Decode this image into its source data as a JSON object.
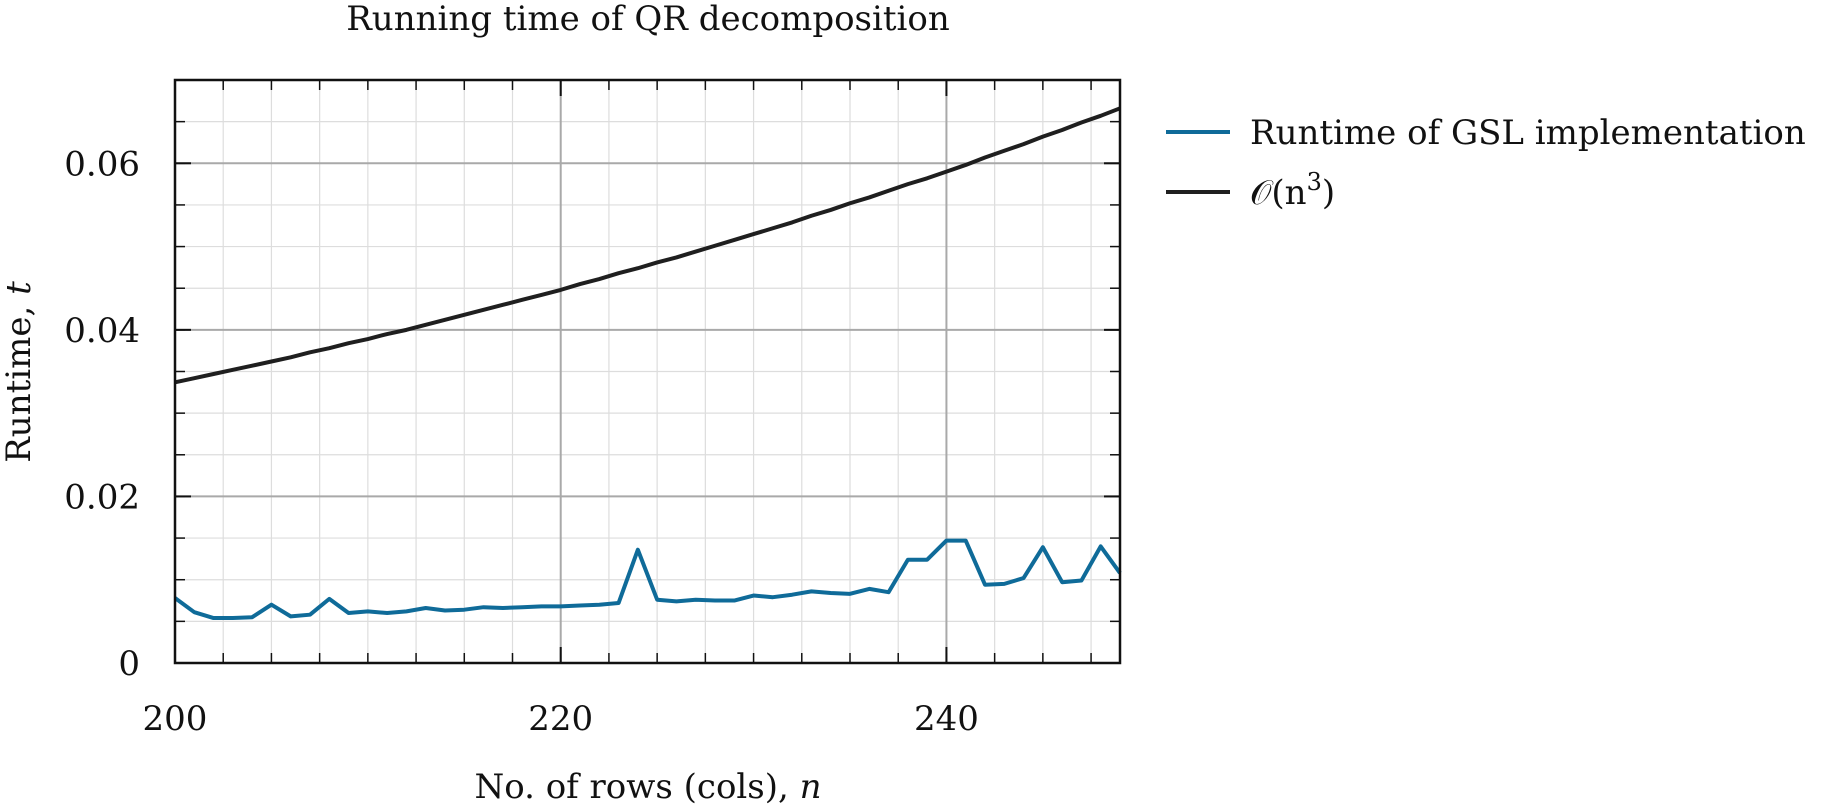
{
  "chart_data": {
    "type": "line",
    "title": "Running time of QR decomposition",
    "xlabel_text": "No. of rows (cols), ",
    "xlabel_var": "n",
    "ylabel_text": "Runtime, ",
    "ylabel_var": "t",
    "xlim": [
      200,
      249
    ],
    "ylim": [
      0,
      0.07
    ],
    "x_major_ticks": [
      200,
      220,
      240
    ],
    "y_major_ticks": [
      0,
      0.02,
      0.04,
      0.06
    ],
    "x_tick_labels": [
      "200",
      "220",
      "240"
    ],
    "y_tick_labels": [
      "0",
      "0.02",
      "0.04",
      "0.06"
    ],
    "x_minor_step": 2.5,
    "y_minor_step": 0.005,
    "grid": true,
    "legend_position": "outside-right-top",
    "x": [
      200,
      201,
      202,
      203,
      204,
      205,
      206,
      207,
      208,
      209,
      210,
      211,
      212,
      213,
      214,
      215,
      216,
      217,
      218,
      219,
      220,
      221,
      222,
      223,
      224,
      225,
      226,
      227,
      228,
      229,
      230,
      231,
      232,
      233,
      234,
      235,
      236,
      237,
      238,
      239,
      240,
      241,
      242,
      243,
      244,
      245,
      246,
      247,
      248,
      249
    ],
    "series": [
      {
        "name": "Runtime of GSL implementation",
        "color": "#0f6b99",
        "values": [
          0.0078,
          0.0061,
          0.0054,
          0.0054,
          0.0055,
          0.007,
          0.0056,
          0.0058,
          0.0077,
          0.006,
          0.0062,
          0.006,
          0.0062,
          0.0066,
          0.0063,
          0.0064,
          0.0067,
          0.0066,
          0.0067,
          0.0068,
          0.0068,
          0.0069,
          0.007,
          0.0072,
          0.0136,
          0.0076,
          0.0074,
          0.0076,
          0.0075,
          0.0075,
          0.0081,
          0.0079,
          0.0082,
          0.0086,
          0.0084,
          0.0083,
          0.0089,
          0.0085,
          0.0124,
          0.0124,
          0.0147,
          0.0147,
          0.0094,
          0.0095,
          0.0102,
          0.0139,
          0.0097,
          0.0099,
          0.014,
          0.0108
        ]
      },
      {
        "name_prefix": "𝒪(n",
        "name_sup": "3",
        "name_suffix": ")",
        "color": "#1f1f1f",
        "values": [
          0.0337,
          0.0342,
          0.0347,
          0.0352,
          0.0357,
          0.0362,
          0.0367,
          0.0373,
          0.0378,
          0.0384,
          0.0389,
          0.0395,
          0.04,
          0.0406,
          0.0412,
          0.0418,
          0.0424,
          0.043,
          0.0436,
          0.0442,
          0.0448,
          0.0455,
          0.0461,
          0.0468,
          0.0474,
          0.0481,
          0.0487,
          0.0494,
          0.0501,
          0.0508,
          0.0515,
          0.0522,
          0.0529,
          0.0537,
          0.0544,
          0.0552,
          0.0559,
          0.0567,
          0.0575,
          0.0582,
          0.059,
          0.0598,
          0.0607,
          0.0615,
          0.0623,
          0.0632,
          0.064,
          0.0649,
          0.0657,
          0.0666
        ]
      }
    ]
  }
}
